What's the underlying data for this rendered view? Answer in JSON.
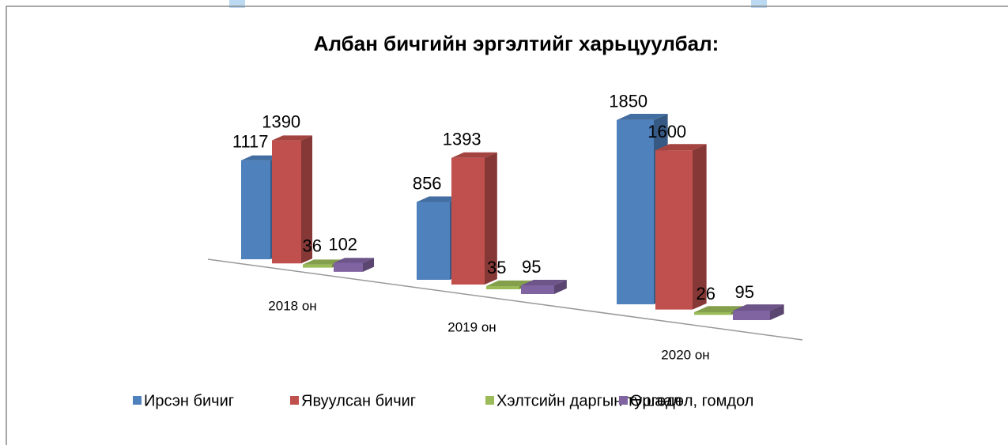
{
  "chart_data": {
    "type": "bar3d",
    "title": "Албан бичгийн эргэлтийг харьцуулбал:",
    "categories": [
      "2018 он",
      "2019 он",
      "2020 он"
    ],
    "series": [
      {
        "name": "Ирсэн бичиг",
        "color": "#4f81bd",
        "values": [
          1117,
          856,
          1850
        ]
      },
      {
        "name": "Явуулсан бичиг",
        "color": "#c0504d",
        "values": [
          1390,
          1393,
          1600
        ]
      },
      {
        "name": "Хэлтсийн даргын тушаал",
        "color": "#9bbb59",
        "values": [
          36,
          35,
          26
        ]
      },
      {
        "name": "Өргөдөл, гомдол",
        "color": "#8064a2",
        "values": [
          102,
          95,
          95
        ]
      }
    ],
    "legend": "bottom"
  }
}
